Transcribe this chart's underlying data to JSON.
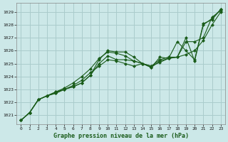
{
  "title": "Graphe pression niveau de la mer (hPa)",
  "bg_color": "#cce8e8",
  "grid_color": "#aacccc",
  "line_color": "#1a5c1a",
  "marker_color": "#1a5c1a",
  "xlim": [
    -0.5,
    23.5
  ],
  "ylim": [
    1020.3,
    1029.7
  ],
  "yticks": [
    1021,
    1022,
    1023,
    1024,
    1025,
    1026,
    1027,
    1028,
    1029
  ],
  "xticks": [
    0,
    1,
    2,
    3,
    4,
    5,
    6,
    7,
    8,
    9,
    10,
    11,
    12,
    13,
    14,
    15,
    16,
    17,
    18,
    19,
    20,
    21,
    22,
    23
  ],
  "series": [
    [
      1020.6,
      1021.2,
      1022.2,
      1022.5,
      1022.7,
      1023.0,
      1023.2,
      1023.5,
      1024.1,
      1025.3,
      1026.0,
      1025.9,
      1025.9,
      1025.5,
      1025.0,
      1024.8,
      1025.1,
      1025.4,
      1025.5,
      1025.7,
      1026.0,
      1026.8,
      1028.0,
      1029.0
    ],
    [
      1020.6,
      1021.2,
      1022.2,
      1022.5,
      1022.7,
      1023.0,
      1023.2,
      1023.5,
      1024.1,
      1025.0,
      1025.6,
      1025.3,
      1025.3,
      1025.2,
      1025.0,
      1024.8,
      1025.3,
      1025.5,
      1025.5,
      1026.7,
      1026.7,
      1027.0,
      1028.6,
      1029.1
    ],
    [
      1020.6,
      1021.2,
      1022.2,
      1022.5,
      1022.8,
      1023.0,
      1023.3,
      1023.7,
      1024.3,
      1024.8,
      1025.3,
      1025.2,
      1025.0,
      1024.8,
      1025.0,
      1024.7,
      1025.2,
      1025.4,
      1026.7,
      1026.0,
      1025.3,
      1028.1,
      1028.4,
      1029.2
    ],
    [
      1020.6,
      1021.2,
      1022.2,
      1022.5,
      1022.8,
      1023.1,
      1023.5,
      1024.0,
      1024.6,
      1025.4,
      1025.9,
      1025.8,
      1025.6,
      1025.2,
      1025.0,
      1024.7,
      1025.5,
      1025.4,
      1025.5,
      1027.0,
      1025.2,
      1028.0,
      1028.5,
      1029.2
    ]
  ]
}
